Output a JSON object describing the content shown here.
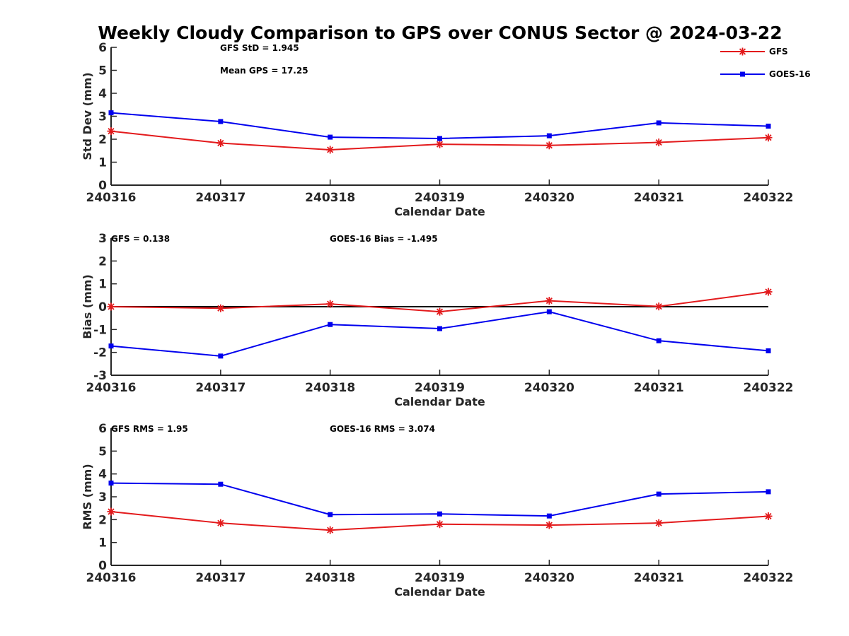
{
  "title": "Weekly Cloudy Comparison to GPS over CONUS Sector @ 2024-03-22",
  "colors": {
    "GFS": "#e31a1c",
    "GOES-16": "#0000ee"
  },
  "legend": {
    "placement": "top-right",
    "entries": [
      {
        "name": "GFS",
        "marker": "asterisk"
      },
      {
        "name": "GOES-16",
        "marker": "square"
      }
    ]
  },
  "chart_data": [
    {
      "type": "line",
      "title": "Weekly Cloudy Comparison to GPS over CONUS Sector @ 2024-03-22",
      "x": [
        "240316",
        "240317",
        "240318",
        "240319",
        "240320",
        "240321",
        "240322"
      ],
      "xlabel": "Calendar Date",
      "ylabel": "Std Dev (mm)",
      "ylim": [
        0,
        6
      ],
      "yticks": [
        "0",
        "1",
        "2",
        "3",
        "4",
        "5",
        "6"
      ],
      "grid": false,
      "zero_line": false,
      "annotations": [
        "GFS StD = 1.945",
        "Mean GPS = 17.25"
      ],
      "series": [
        {
          "name": "GFS",
          "values": [
            2.35,
            1.83,
            1.54,
            1.78,
            1.73,
            1.86,
            2.07
          ]
        },
        {
          "name": "GOES-16",
          "values": [
            3.15,
            2.77,
            2.09,
            2.03,
            2.15,
            2.71,
            2.57
          ]
        }
      ]
    },
    {
      "type": "line",
      "x": [
        "240316",
        "240317",
        "240318",
        "240319",
        "240320",
        "240321",
        "240322"
      ],
      "xlabel": "Calendar Date",
      "ylabel": "Bias (mm)",
      "ylim": [
        -3,
        3
      ],
      "yticks": [
        "-3",
        "-2",
        "-1",
        "0",
        "1",
        "2",
        "3"
      ],
      "grid": false,
      "zero_line": true,
      "annotations": [
        "GFS = 0.138",
        "GOES-16 Bias  = -1.495"
      ],
      "series": [
        {
          "name": "GFS",
          "values": [
            0.0,
            -0.07,
            0.12,
            -0.22,
            0.26,
            0.01,
            0.65
          ]
        },
        {
          "name": "GOES-16",
          "values": [
            -1.72,
            -2.16,
            -0.78,
            -0.96,
            -0.22,
            -1.49,
            -1.93
          ]
        }
      ]
    },
    {
      "type": "line",
      "x": [
        "240316",
        "240317",
        "240318",
        "240319",
        "240320",
        "240321",
        "240322"
      ],
      "xlabel": "Calendar Date",
      "ylabel": "RMS (mm)",
      "ylim": [
        0,
        6
      ],
      "yticks": [
        "0",
        "1",
        "2",
        "3",
        "4",
        "5",
        "6"
      ],
      "grid": false,
      "zero_line": false,
      "annotations": [
        "GFS RMS = 1.95",
        "GOES-16 RMS = 3.074"
      ],
      "series": [
        {
          "name": "GFS",
          "values": [
            2.35,
            1.85,
            1.54,
            1.8,
            1.76,
            1.85,
            2.15
          ]
        },
        {
          "name": "GOES-16",
          "values": [
            3.6,
            3.55,
            2.22,
            2.25,
            2.16,
            3.12,
            3.22
          ]
        }
      ]
    }
  ]
}
